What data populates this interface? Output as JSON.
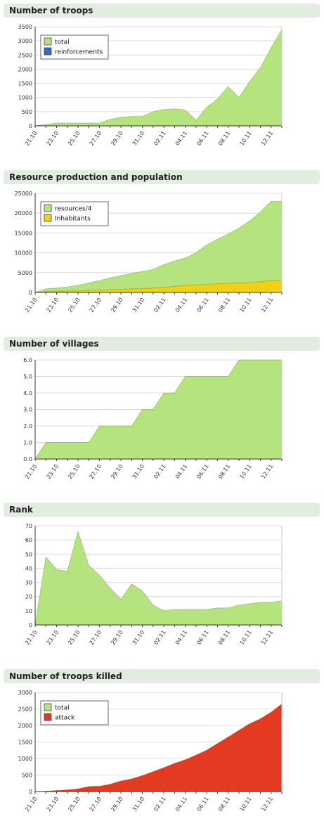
{
  "chart_data": [
    {
      "type": "area",
      "title": "Number of troops",
      "x": [
        "21.10",
        "",
        "23.10",
        "",
        "25.10",
        "",
        "27.10",
        "",
        "29.10",
        "",
        "31.10",
        "",
        "02.11",
        "",
        "04.11",
        "",
        "06.11",
        "",
        "08.11",
        "",
        "10.11",
        "",
        "12.11",
        ""
      ],
      "ylim": [
        0,
        3500
      ],
      "yticks": [
        "0",
        "500",
        "1000",
        "1500",
        "2000",
        "2500",
        "3000",
        "3500"
      ],
      "ytick_values": [
        0,
        500,
        1000,
        1500,
        2000,
        2500,
        3000,
        3500
      ],
      "legend": {
        "placement": "top-left"
      },
      "series": [
        {
          "name": "total",
          "color": "#b5e37d",
          "values": [
            0,
            50,
            100,
            100,
            100,
            100,
            100,
            230,
            300,
            330,
            330,
            500,
            580,
            600,
            560,
            200,
            650,
            950,
            1380,
            1000,
            1560,
            2050,
            2750,
            3400
          ]
        },
        {
          "name": "reinforcements",
          "color": "#2f6bd6",
          "values": [
            0,
            0,
            0,
            0,
            0,
            0,
            0,
            0,
            0,
            0,
            0,
            0,
            0,
            0,
            0,
            0,
            0,
            0,
            0,
            0,
            0,
            0,
            0,
            0
          ]
        }
      ]
    },
    {
      "type": "area",
      "title": "Resource production and population",
      "x": [
        "21.10",
        "",
        "23.10",
        "",
        "25.10",
        "",
        "27.10",
        "",
        "29.10",
        "",
        "31.10",
        "",
        "02.11",
        "",
        "04.11",
        "",
        "06.11",
        "",
        "08.11",
        "",
        "10.11",
        "",
        "12.11",
        ""
      ],
      "ylim": [
        0,
        25000
      ],
      "yticks": [
        "0",
        "5000",
        "10000",
        "15000",
        "20000",
        "25000"
      ],
      "ytick_values": [
        0,
        5000,
        10000,
        15000,
        20000,
        25000
      ],
      "legend": {
        "placement": "top-left"
      },
      "series": [
        {
          "name": "resources/4",
          "color": "#b5e37d",
          "values": [
            0,
            900,
            1100,
            1400,
            1800,
            2400,
            3000,
            3700,
            4200,
            4800,
            5300,
            5800,
            7000,
            7900,
            8700,
            10000,
            12000,
            13400,
            14700,
            16200,
            18000,
            20300,
            23000,
            23000
          ]
        },
        {
          "name": "Inhabitants",
          "color": "#f2d012",
          "values": [
            0,
            200,
            300,
            350,
            400,
            500,
            600,
            700,
            800,
            900,
            1000,
            1100,
            1300,
            1500,
            1800,
            1900,
            2000,
            2200,
            2300,
            2400,
            2500,
            2700,
            3000,
            3000
          ]
        }
      ]
    },
    {
      "type": "area",
      "title": "Number of villages",
      "x": [
        "21.10",
        "",
        "23.10",
        "",
        "25.10",
        "",
        "27.10",
        "",
        "29.10",
        "",
        "31.10",
        "",
        "02.11",
        "",
        "04.11",
        "",
        "06.11",
        "",
        "08.11",
        "",
        "10.11",
        "",
        "12.11",
        ""
      ],
      "ylim": [
        0,
        6
      ],
      "yticks": [
        "0.0",
        "1.0",
        "2.0",
        "3.0",
        "4.0",
        "5.0",
        "6.0"
      ],
      "ytick_values": [
        0,
        1,
        2,
        3,
        4,
        5,
        6
      ],
      "legend": null,
      "series": [
        {
          "name": "",
          "color": "#b5e37d",
          "values": [
            0,
            1,
            1,
            1,
            1,
            1,
            2,
            2,
            2,
            2,
            3,
            3,
            4,
            4,
            5,
            5,
            5,
            5,
            5,
            6,
            6,
            6,
            6,
            6
          ]
        }
      ]
    },
    {
      "type": "area",
      "title": "Rank",
      "x": [
        "21.10",
        "",
        "23.10",
        "",
        "25.10",
        "",
        "27.10",
        "",
        "29.10",
        "",
        "31.10",
        "",
        "02.11",
        "",
        "04.11",
        "",
        "06.11",
        "",
        "08.11",
        "",
        "10.11",
        "",
        "12.11",
        ""
      ],
      "ylim": [
        0,
        70
      ],
      "yticks": [
        "0",
        "10",
        "20",
        "30",
        "40",
        "50",
        "60",
        "70"
      ],
      "ytick_values": [
        0,
        10,
        20,
        30,
        40,
        50,
        60,
        70
      ],
      "legend": null,
      "series": [
        {
          "name": "",
          "color": "#b5e37d",
          "values": [
            0,
            48,
            39,
            38,
            66,
            42,
            35,
            26,
            18,
            29,
            24,
            14,
            10,
            11,
            11,
            11,
            11,
            12,
            12,
            14,
            15,
            16,
            16,
            17
          ]
        }
      ]
    },
    {
      "type": "area",
      "title": "Number of troops killed",
      "x": [
        "21.10",
        "",
        "23.10",
        "",
        "25.10",
        "",
        "27.10",
        "",
        "29.10",
        "",
        "31.10",
        "",
        "02.11",
        "",
        "04.11",
        "",
        "06.11",
        "",
        "08.11",
        "",
        "10.11",
        "",
        "12.11",
        ""
      ],
      "ylim": [
        0,
        3000
      ],
      "yticks": [
        "0",
        "500",
        "1000",
        "1500",
        "2000",
        "2500",
        "3000"
      ],
      "ytick_values": [
        0,
        500,
        1000,
        1500,
        2000,
        2500,
        3000
      ],
      "legend": {
        "placement": "top-left"
      },
      "series": [
        {
          "name": "total",
          "color": "#b5e37d",
          "values": [
            0,
            10,
            30,
            50,
            80,
            150,
            160,
            220,
            320,
            380,
            480,
            600,
            720,
            850,
            960,
            1100,
            1250,
            1450,
            1650,
            1850,
            2050,
            2200,
            2400,
            2650
          ]
        },
        {
          "name": "attack",
          "color": "#e53a22",
          "values": [
            0,
            10,
            30,
            50,
            80,
            150,
            160,
            220,
            320,
            380,
            480,
            600,
            720,
            850,
            960,
            1100,
            1250,
            1450,
            1650,
            1850,
            2050,
            2200,
            2400,
            2650
          ]
        }
      ]
    }
  ]
}
